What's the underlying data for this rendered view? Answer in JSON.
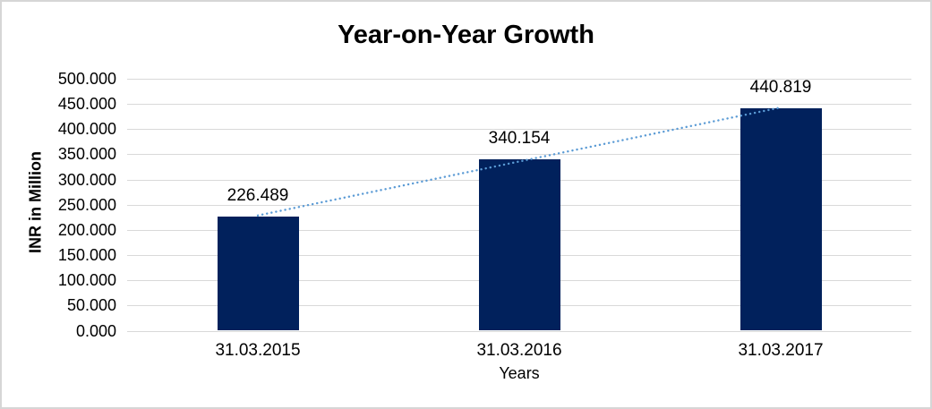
{
  "chart": {
    "title": "Year-on-Year Growth",
    "y_axis_title": "INR in Million",
    "x_axis_title": "Years"
  },
  "chart_data": {
    "type": "bar",
    "title": "Year-on-Year Growth",
    "xlabel": "Years",
    "ylabel": "INR in Million",
    "categories": [
      "31.03.2015",
      "31.03.2016",
      "31.03.2017"
    ],
    "values": [
      226.489,
      340.154,
      440.819
    ],
    "bar_labels": [
      "226.489",
      "340.154",
      "440.819"
    ],
    "ylim": [
      0,
      500
    ],
    "ytick_step": 50,
    "ytick_labels": [
      "0.000",
      "50.000",
      "100.000",
      "150.000",
      "200.000",
      "250.000",
      "300.000",
      "350.000",
      "400.000",
      "450.000",
      "500.000"
    ],
    "grid": true,
    "legend": false,
    "trendline": true,
    "trendline_style": "dotted",
    "colors": {
      "bar": "#01215C",
      "trendline": "#5B9BD5",
      "gridline": "#D9D9D9",
      "axis_line": "#D9D9D9",
      "text": "#000000"
    }
  }
}
